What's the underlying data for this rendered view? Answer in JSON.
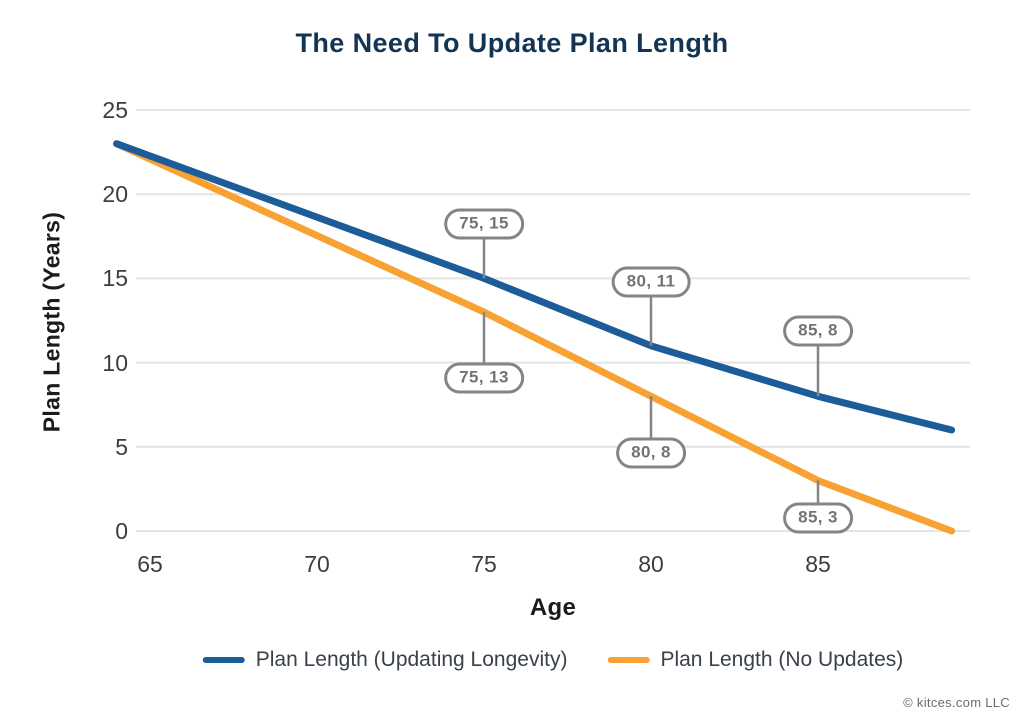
{
  "chart_data": {
    "type": "line",
    "title": "The Need To Update Plan Length",
    "xlabel": "Age",
    "ylabel": "Plan Length (Years)",
    "x_ticks": [
      65,
      70,
      75,
      80,
      85
    ],
    "y_ticks": [
      0,
      5,
      10,
      15,
      20,
      25
    ],
    "xlim": [
      64,
      89.3
    ],
    "ylim": [
      0,
      25
    ],
    "grid": "horizontal-only",
    "legend_position": "bottom",
    "gridline_color": "#e4e4e4",
    "annotation_color": "#83858a",
    "series": [
      {
        "name": "Plan Length (Updating Longevity)",
        "color": "#1b5c99",
        "points": [
          [
            64,
            23
          ],
          [
            75,
            15
          ],
          [
            80,
            11
          ],
          [
            85,
            8
          ],
          [
            89,
            6
          ]
        ]
      },
      {
        "name": "Plan Length (No Updates)",
        "color": "#f7a233",
        "points": [
          [
            64,
            23
          ],
          [
            75,
            13
          ],
          [
            80,
            8
          ],
          [
            85,
            3
          ],
          [
            89,
            0
          ]
        ]
      }
    ],
    "annotations": [
      {
        "label": "75, 15",
        "x": 75,
        "y": 15,
        "series": "Plan Length (Updating Longevity)",
        "side": "above"
      },
      {
        "label": "80, 11",
        "x": 80,
        "y": 11,
        "series": "Plan Length (Updating Longevity)",
        "side": "above"
      },
      {
        "label": "85, 8",
        "x": 85,
        "y": 8,
        "series": "Plan Length (Updating Longevity)",
        "side": "above"
      },
      {
        "label": "75, 13",
        "x": 75,
        "y": 13,
        "series": "Plan Length (No Updates)",
        "side": "below"
      },
      {
        "label": "80, 8",
        "x": 80,
        "y": 8,
        "series": "Plan Length (No Updates)",
        "side": "below"
      },
      {
        "label": "85, 3",
        "x": 85,
        "y": 3,
        "series": "Plan Length (No Updates)",
        "side": "below"
      }
    ]
  },
  "footer": {
    "copyright": "© kitces.com LLC"
  }
}
